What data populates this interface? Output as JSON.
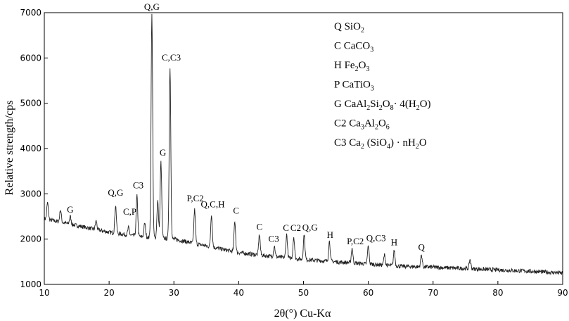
{
  "chart_data": {
    "type": "line",
    "xlabel": "2θ(°) Cu-Kα",
    "ylabel": "Relative strength/cps",
    "xlim": [
      10,
      90
    ],
    "ylim": [
      1000,
      7000
    ],
    "x_ticks": [
      "10",
      "20",
      "30",
      "40",
      "50",
      "60",
      "70",
      "80",
      "90"
    ],
    "y_ticks": [
      "1000",
      "2000",
      "3000",
      "4000",
      "5000",
      "6000",
      "7000"
    ],
    "grid": false,
    "legend_position": "top-right",
    "series": [
      {
        "baseline": [
          [
            10,
            2450
          ],
          [
            15,
            2300
          ],
          [
            20,
            2150
          ],
          [
            25,
            2050
          ],
          [
            30,
            2000
          ],
          [
            35,
            1850
          ],
          [
            40,
            1700
          ],
          [
            45,
            1620
          ],
          [
            50,
            1550
          ],
          [
            55,
            1500
          ],
          [
            60,
            1450
          ],
          [
            65,
            1400
          ],
          [
            70,
            1380
          ],
          [
            75,
            1350
          ],
          [
            80,
            1320
          ],
          [
            85,
            1290
          ],
          [
            90,
            1250
          ]
        ],
        "peaks": [
          {
            "x": 10.5,
            "y": 2800
          },
          {
            "x": 12.5,
            "y": 2650
          },
          {
            "x": 14.0,
            "y": 2500
          },
          {
            "x": 18.0,
            "y": 2400
          },
          {
            "x": 21.0,
            "y": 2750
          },
          {
            "x": 23.0,
            "y": 2250
          },
          {
            "x": 24.3,
            "y": 2950
          },
          {
            "x": 25.5,
            "y": 2350
          },
          {
            "x": 26.6,
            "y": 6950
          },
          {
            "x": 27.5,
            "y": 2850
          },
          {
            "x": 28.0,
            "y": 3700
          },
          {
            "x": 29.4,
            "y": 5800
          },
          {
            "x": 33.2,
            "y": 2650
          },
          {
            "x": 35.8,
            "y": 2550
          },
          {
            "x": 39.4,
            "y": 2400
          },
          {
            "x": 43.2,
            "y": 2100
          },
          {
            "x": 45.5,
            "y": 1850
          },
          {
            "x": 47.4,
            "y": 2100
          },
          {
            "x": 48.5,
            "y": 2050
          },
          {
            "x": 50.1,
            "y": 2100
          },
          {
            "x": 54.0,
            "y": 1950
          },
          {
            "x": 57.5,
            "y": 1800
          },
          {
            "x": 60.0,
            "y": 1850
          },
          {
            "x": 62.5,
            "y": 1650
          },
          {
            "x": 64.0,
            "y": 1750
          },
          {
            "x": 68.2,
            "y": 1650
          },
          {
            "x": 75.7,
            "y": 1550
          }
        ]
      }
    ],
    "annotations": [
      {
        "text": "G",
        "x": 14.0,
        "y": 2520
      },
      {
        "text": "Q,G",
        "x": 21.0,
        "y": 2900
      },
      {
        "text": "C,P",
        "x": 23.2,
        "y": 2480
      },
      {
        "text": "C3",
        "x": 24.5,
        "y": 3060
      },
      {
        "text": "Q,G",
        "x": 26.6,
        "y": 7000
      },
      {
        "text": "G",
        "x": 28.3,
        "y": 3780
      },
      {
        "text": "C,C3",
        "x": 29.6,
        "y": 5880
      },
      {
        "text": "P,C2",
        "x": 33.3,
        "y": 2770
      },
      {
        "text": "Q,C,H",
        "x": 36.0,
        "y": 2640
      },
      {
        "text": "C",
        "x": 39.6,
        "y": 2500
      },
      {
        "text": "C",
        "x": 43.2,
        "y": 2140
      },
      {
        "text": "C3",
        "x": 45.4,
        "y": 1880
      },
      {
        "text": "C",
        "x": 47.3,
        "y": 2120
      },
      {
        "text": "C2",
        "x": 48.8,
        "y": 2120
      },
      {
        "text": "Q,G",
        "x": 51.0,
        "y": 2130
      },
      {
        "text": "H",
        "x": 54.1,
        "y": 1960
      },
      {
        "text": "P,C2",
        "x": 58.0,
        "y": 1820
      },
      {
        "text": "Q,C3",
        "x": 61.2,
        "y": 1890
      },
      {
        "text": "H",
        "x": 64.0,
        "y": 1800
      },
      {
        "text": "Q",
        "x": 68.2,
        "y": 1690
      }
    ],
    "legend": [
      {
        "name": "Q",
        "formula": [
          [
            "SiO",
            ""
          ],
          [
            "2",
            "sub"
          ]
        ]
      },
      {
        "name": "C",
        "formula": [
          [
            "CaCO",
            ""
          ],
          [
            "3",
            "sub"
          ]
        ]
      },
      {
        "name": "H",
        "formula": [
          [
            "Fe",
            ""
          ],
          [
            "2",
            "sub"
          ],
          [
            "O",
            ""
          ],
          [
            "3",
            "sub"
          ]
        ]
      },
      {
        "name": "P",
        "formula": [
          [
            "CaTiO",
            ""
          ],
          [
            "3",
            "sub"
          ]
        ]
      },
      {
        "name": "G",
        "formula": [
          [
            "CaAl",
            ""
          ],
          [
            "2",
            "sub"
          ],
          [
            "Si",
            ""
          ],
          [
            "2",
            "sub"
          ],
          [
            "O",
            ""
          ],
          [
            "8",
            "sub"
          ],
          [
            "· 4(H",
            ""
          ],
          [
            "2",
            "sub"
          ],
          [
            "O)",
            ""
          ]
        ]
      },
      {
        "name": "C2",
        "formula": [
          [
            "Ca",
            ""
          ],
          [
            "3",
            "sub"
          ],
          [
            "Al",
            ""
          ],
          [
            "2",
            "sub"
          ],
          [
            "O",
            ""
          ],
          [
            "6",
            "sub"
          ]
        ]
      },
      {
        "name": "C3",
        "formula": [
          [
            "Ca",
            ""
          ],
          [
            "2",
            "sub"
          ],
          [
            " (SiO",
            ""
          ],
          [
            "4",
            "sub"
          ],
          [
            ") · nH",
            ""
          ],
          [
            "2",
            "sub"
          ],
          [
            "O",
            ""
          ]
        ]
      }
    ],
    "line_color": "#222222"
  }
}
